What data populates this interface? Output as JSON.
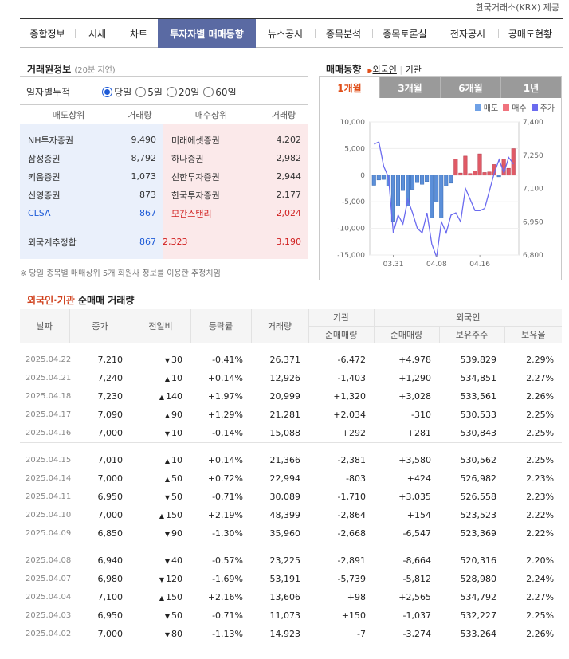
{
  "source_label": "한국거래소(KRX) 제공",
  "tabs": [
    "종합정보",
    "시세",
    "차트",
    "투자자별 매매동향",
    "뉴스공시",
    "종목분석",
    "종목토론실",
    "전자공시",
    "공매도현황"
  ],
  "broker": {
    "title": "거래원정보",
    "delay": "(20분 지연)",
    "period_label": "일자별누적",
    "periods": [
      "당일",
      "5일",
      "20일",
      "60일"
    ],
    "headers": [
      "매도상위",
      "거래량",
      "매수상위",
      "거래량"
    ],
    "sell": [
      {
        "name": "NH투자증권",
        "vol": "9,490"
      },
      {
        "name": "삼성증권",
        "vol": "8,792"
      },
      {
        "name": "키움증권",
        "vol": "1,073"
      },
      {
        "name": "신영증권",
        "vol": "873"
      },
      {
        "name": "CLSA",
        "vol": "867"
      }
    ],
    "buy": [
      {
        "name": "미래에셋증권",
        "vol": "4,202"
      },
      {
        "name": "하나증권",
        "vol": "2,982"
      },
      {
        "name": "신한투자증권",
        "vol": "2,944"
      },
      {
        "name": "한국투자증권",
        "vol": "2,177"
      },
      {
        "name": "모간스탠리",
        "vol": "2,024"
      }
    ],
    "foreign_label": "외국계추정합",
    "foreign_sell": "867",
    "foreign_net": "2,323",
    "foreign_buy": "3,190",
    "note": "※ 당일 종목별 매매상위 5개 회원사 정보를 이용한 추정치임"
  },
  "trend": {
    "title": "매매동향",
    "links": [
      "외국인",
      "기관"
    ],
    "chart_tabs": [
      "1개월",
      "3개월",
      "6개월",
      "1년"
    ],
    "legend": [
      "매도",
      "매수",
      "주가"
    ]
  },
  "chart_data": {
    "type": "bar",
    "x_ticks": [
      "03.31",
      "04.08",
      "04.16"
    ],
    "y_left_ticks": [
      "10,000",
      "5,000",
      "0",
      "-5,000",
      "-10,000",
      "-15,000"
    ],
    "y_right_ticks": [
      "7,400",
      "7,250",
      "7,100",
      "6,950",
      "6,800"
    ],
    "ylim_left": [
      -15000,
      10000
    ],
    "ylim_right": [
      6800,
      7400
    ],
    "bars": [
      -1900,
      -900,
      -800,
      -2000,
      -8664,
      -5812,
      -2891,
      -5739,
      -2668,
      -1400,
      -1710,
      -1200,
      -8000,
      -5000,
      -8000,
      -2000,
      -1500,
      3000,
      400,
      3580,
      300,
      800,
      4000,
      500,
      600,
      2000,
      -310,
      3028,
      1290,
      4978
    ],
    "series": [
      {
        "name": "주가",
        "values": [
          7300,
          7310,
          7200,
          7150,
          6900,
          6980,
          6940,
          7050,
          6990,
          6920,
          6900,
          6990,
          6850,
          6790,
          6950,
          6900,
          6980,
          6990,
          6950,
          7100,
          7050,
          7000,
          7000,
          7010,
          7090,
          7170,
          7230,
          7170,
          7240,
          7210
        ]
      }
    ]
  },
  "table": {
    "title_foreign": "외국인",
    "title_dot": "·",
    "title_inst": "기관",
    "title_rest": "순매매 거래량",
    "header_top": [
      "날짜",
      "종가",
      "전일비",
      "등락률",
      "거래량",
      "기관",
      "외국인"
    ],
    "header_sub": [
      "순매매량",
      "순매매량",
      "보유주수",
      "보유율"
    ],
    "groups": [
      [
        {
          "date": "2025.04.22",
          "close": "7,210",
          "dir": "dn",
          "chg": "30",
          "rate": "-0.41%",
          "vol": "26,371",
          "inst": "-6,472",
          "frgn": "+4,978",
          "hold": "539,829",
          "ratio": "2.29%"
        },
        {
          "date": "2025.04.21",
          "close": "7,240",
          "dir": "up",
          "chg": "10",
          "rate": "+0.14%",
          "vol": "12,926",
          "inst": "-1,403",
          "frgn": "+1,290",
          "hold": "534,851",
          "ratio": "2.27%"
        },
        {
          "date": "2025.04.18",
          "close": "7,230",
          "dir": "up",
          "chg": "140",
          "rate": "+1.97%",
          "vol": "20,999",
          "inst": "+1,320",
          "frgn": "+3,028",
          "hold": "533,561",
          "ratio": "2.26%"
        },
        {
          "date": "2025.04.17",
          "close": "7,090",
          "dir": "up",
          "chg": "90",
          "rate": "+1.29%",
          "vol": "21,281",
          "inst": "+2,034",
          "frgn": "-310",
          "hold": "530,533",
          "ratio": "2.25%"
        },
        {
          "date": "2025.04.16",
          "close": "7,000",
          "dir": "dn",
          "chg": "10",
          "rate": "-0.14%",
          "vol": "15,088",
          "inst": "+292",
          "frgn": "+281",
          "hold": "530,843",
          "ratio": "2.25%"
        }
      ],
      [
        {
          "date": "2025.04.15",
          "close": "7,010",
          "dir": "up",
          "chg": "10",
          "rate": "+0.14%",
          "vol": "21,366",
          "inst": "-2,381",
          "frgn": "+3,580",
          "hold": "530,562",
          "ratio": "2.25%"
        },
        {
          "date": "2025.04.14",
          "close": "7,000",
          "dir": "up",
          "chg": "50",
          "rate": "+0.72%",
          "vol": "22,994",
          "inst": "-803",
          "frgn": "+424",
          "hold": "526,982",
          "ratio": "2.23%"
        },
        {
          "date": "2025.04.11",
          "close": "6,950",
          "dir": "dn",
          "chg": "50",
          "rate": "-0.71%",
          "vol": "30,089",
          "inst": "-1,710",
          "frgn": "+3,035",
          "hold": "526,558",
          "ratio": "2.23%"
        },
        {
          "date": "2025.04.10",
          "close": "7,000",
          "dir": "up",
          "chg": "150",
          "rate": "+2.19%",
          "vol": "48,399",
          "inst": "-2,864",
          "frgn": "+154",
          "hold": "523,523",
          "ratio": "2.22%"
        },
        {
          "date": "2025.04.09",
          "close": "6,850",
          "dir": "dn",
          "chg": "90",
          "rate": "-1.30%",
          "vol": "35,960",
          "inst": "-2,668",
          "frgn": "-6,547",
          "hold": "523,369",
          "ratio": "2.22%"
        }
      ],
      [
        {
          "date": "2025.04.08",
          "close": "6,940",
          "dir": "dn",
          "chg": "40",
          "rate": "-0.57%",
          "vol": "23,225",
          "inst": "-2,891",
          "frgn": "-8,664",
          "hold": "520,316",
          "ratio": "2.20%"
        },
        {
          "date": "2025.04.07",
          "close": "6,980",
          "dir": "dn",
          "chg": "120",
          "rate": "-1.69%",
          "vol": "53,191",
          "inst": "-5,739",
          "frgn": "-5,812",
          "hold": "528,980",
          "ratio": "2.24%"
        },
        {
          "date": "2025.04.04",
          "close": "7,100",
          "dir": "up",
          "chg": "150",
          "rate": "+2.16%",
          "vol": "13,606",
          "inst": "+98",
          "frgn": "+2,565",
          "hold": "534,792",
          "ratio": "2.27%"
        },
        {
          "date": "2025.04.03",
          "close": "6,950",
          "dir": "dn",
          "chg": "50",
          "rate": "-0.71%",
          "vol": "11,073",
          "inst": "+150",
          "frgn": "-1,037",
          "hold": "532,227",
          "ratio": "2.25%"
        },
        {
          "date": "2025.04.02",
          "close": "7,000",
          "dir": "dn",
          "chg": "80",
          "rate": "-1.13%",
          "vol": "14,923",
          "inst": "-7",
          "frgn": "-3,274",
          "hold": "533,264",
          "ratio": "2.26%"
        }
      ]
    ]
  },
  "colors": {
    "up": "#d01e1e",
    "down": "#1e5bd7",
    "sell_bg": "#eaf0fb",
    "buy_bg": "#fbe9ea",
    "active_tab": "#5a6aa3",
    "accent": "#e04f1a"
  }
}
